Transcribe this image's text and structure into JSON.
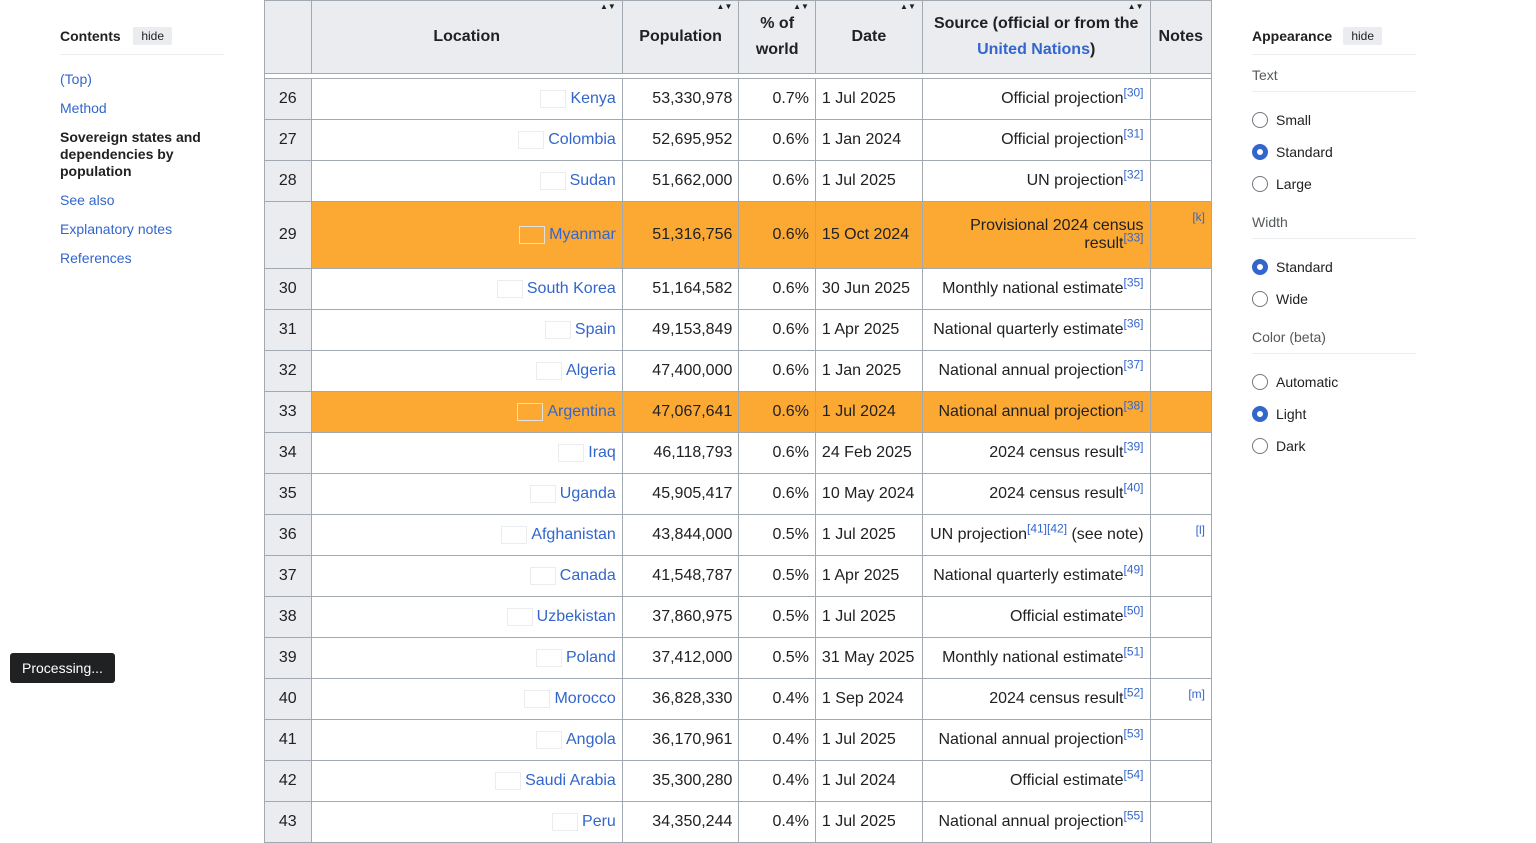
{
  "toc": {
    "title": "Contents",
    "hide_label": "hide",
    "items": [
      {
        "label": "(Top)",
        "current": false
      },
      {
        "label": "Method",
        "current": false
      },
      {
        "label": "Sovereign states and dependencies by population",
        "current": true
      },
      {
        "label": "See also",
        "current": false
      },
      {
        "label": "Explanatory notes",
        "current": false
      },
      {
        "label": "References",
        "current": false
      }
    ]
  },
  "table": {
    "headers": {
      "location": "Location",
      "population": "Population",
      "pct": "% of world",
      "date": "Date",
      "source_prefix": "Source (official or from the ",
      "source_link": "United Nations",
      "source_suffix": ")",
      "notes": "Notes"
    },
    "highlight_color": "#fca934",
    "rows": [
      {
        "rank": "26",
        "location": "Kenya",
        "population": "53,330,978",
        "pct": "0.7%",
        "date": "1 Jul 2025",
        "source": "Official projection",
        "ref": "[30]",
        "note": "",
        "highlight": false
      },
      {
        "rank": "27",
        "location": "Colombia",
        "population": "52,695,952",
        "pct": "0.6%",
        "date": "1 Jan 2024",
        "source": "Official projection",
        "ref": "[31]",
        "note": "",
        "highlight": false
      },
      {
        "rank": "28",
        "location": "Sudan",
        "population": "51,662,000",
        "pct": "0.6%",
        "date": "1 Jul 2025",
        "source": "UN projection",
        "ref": "[32]",
        "note": "",
        "highlight": false
      },
      {
        "rank": "29",
        "location": "Myanmar",
        "population": "51,316,756",
        "pct": "0.6%",
        "date": "15 Oct 2024",
        "source": "Provisional 2024 census result",
        "ref": "[33]",
        "note": "[k]",
        "highlight": true
      },
      {
        "rank": "30",
        "location": "South Korea",
        "population": "51,164,582",
        "pct": "0.6%",
        "date": "30 Jun 2025",
        "source": "Monthly national estimate",
        "ref": "[35]",
        "note": "",
        "highlight": false
      },
      {
        "rank": "31",
        "location": "Spain",
        "population": "49,153,849",
        "pct": "0.6%",
        "date": "1 Apr 2025",
        "source": "National quarterly estimate",
        "ref": "[36]",
        "note": "",
        "highlight": false
      },
      {
        "rank": "32",
        "location": "Algeria",
        "population": "47,400,000",
        "pct": "0.6%",
        "date": "1 Jan 2025",
        "source": "National annual projection",
        "ref": "[37]",
        "note": "",
        "highlight": false
      },
      {
        "rank": "33",
        "location": "Argentina",
        "population": "47,067,641",
        "pct": "0.6%",
        "date": "1 Jul 2024",
        "source": "National annual projection",
        "ref": "[38]",
        "note": "",
        "highlight": true
      },
      {
        "rank": "34",
        "location": "Iraq",
        "population": "46,118,793",
        "pct": "0.6%",
        "date": "24 Feb 2025",
        "source": "2024 census result",
        "ref": "[39]",
        "note": "",
        "highlight": false
      },
      {
        "rank": "35",
        "location": "Uganda",
        "population": "45,905,417",
        "pct": "0.6%",
        "date": "10 May 2024",
        "source": "2024 census result",
        "ref": "[40]",
        "note": "",
        "highlight": false
      },
      {
        "rank": "36",
        "location": "Afghanistan",
        "population": "43,844,000",
        "pct": "0.5%",
        "date": "1 Jul 2025",
        "source": "UN projection",
        "ref": "[41][42]",
        "source_tail": " (see note)",
        "note": "[l]",
        "highlight": false
      },
      {
        "rank": "37",
        "location": "Canada",
        "population": "41,548,787",
        "pct": "0.5%",
        "date": "1 Apr 2025",
        "source": "National quarterly estimate",
        "ref": "[49]",
        "note": "",
        "highlight": false
      },
      {
        "rank": "38",
        "location": "Uzbekistan",
        "population": "37,860,975",
        "pct": "0.5%",
        "date": "1 Jul 2025",
        "source": "Official estimate",
        "ref": "[50]",
        "note": "",
        "highlight": false
      },
      {
        "rank": "39",
        "location": "Poland",
        "population": "37,412,000",
        "pct": "0.5%",
        "date": "31 May 2025",
        "source": "Monthly national estimate",
        "ref": "[51]",
        "note": "",
        "highlight": false
      },
      {
        "rank": "40",
        "location": "Morocco",
        "population": "36,828,330",
        "pct": "0.4%",
        "date": "1 Sep 2024",
        "source": "2024 census result",
        "ref": "[52]",
        "note": "[m]",
        "highlight": false
      },
      {
        "rank": "41",
        "location": "Angola",
        "population": "36,170,961",
        "pct": "0.4%",
        "date": "1 Jul 2025",
        "source": "National annual projection",
        "ref": "[53]",
        "note": "",
        "highlight": false
      },
      {
        "rank": "42",
        "location": "Saudi Arabia",
        "population": "35,300,280",
        "pct": "0.4%",
        "date": "1 Jul 2024",
        "source": "Official estimate",
        "ref": "[54]",
        "note": "",
        "highlight": false
      },
      {
        "rank": "43",
        "location": "Peru",
        "population": "34,350,244",
        "pct": "0.4%",
        "date": "1 Jul 2025",
        "source": "National annual projection",
        "ref": "[55]",
        "note": "",
        "highlight": false
      }
    ]
  },
  "appearance": {
    "title": "Appearance",
    "hide_label": "hide",
    "groups": [
      {
        "key": "text",
        "label": "Text",
        "options": [
          {
            "label": "Small",
            "selected": false
          },
          {
            "label": "Standard",
            "selected": true
          },
          {
            "label": "Large",
            "selected": false
          }
        ]
      },
      {
        "key": "width",
        "label": "Width",
        "options": [
          {
            "label": "Standard",
            "selected": true
          },
          {
            "label": "Wide",
            "selected": false
          }
        ]
      },
      {
        "key": "color",
        "label": "Color (beta)",
        "options": [
          {
            "label": "Automatic",
            "selected": false
          },
          {
            "label": "Light",
            "selected": true
          },
          {
            "label": "Dark",
            "selected": false
          }
        ]
      }
    ]
  },
  "status": {
    "processing": "Processing..."
  }
}
